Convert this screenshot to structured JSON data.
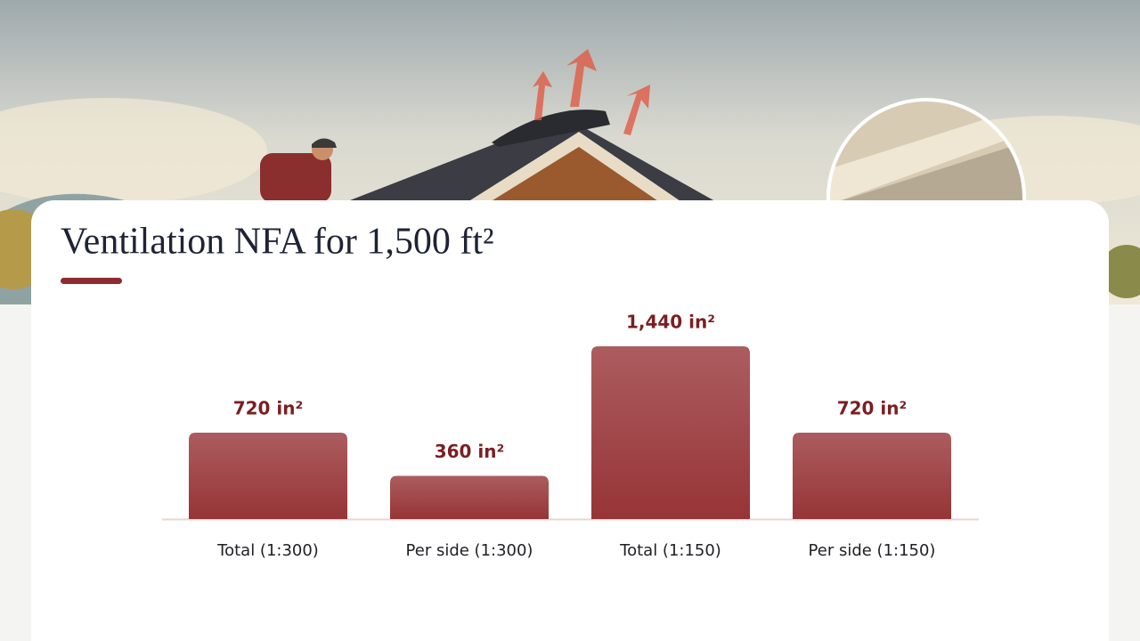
{
  "chart_data": {
    "type": "bar",
    "title": "Ventilation NFA for 1,500 ft²",
    "categories": [
      "Total (1:300)",
      "Per side (1:300)",
      "Total (1:150)",
      "Per side (1:150)"
    ],
    "values": [
      720,
      360,
      1440,
      720
    ],
    "value_labels": [
      "720 in²",
      "360 in²",
      "1,440 in²",
      "720 in²"
    ],
    "color": "#973437"
  }
}
